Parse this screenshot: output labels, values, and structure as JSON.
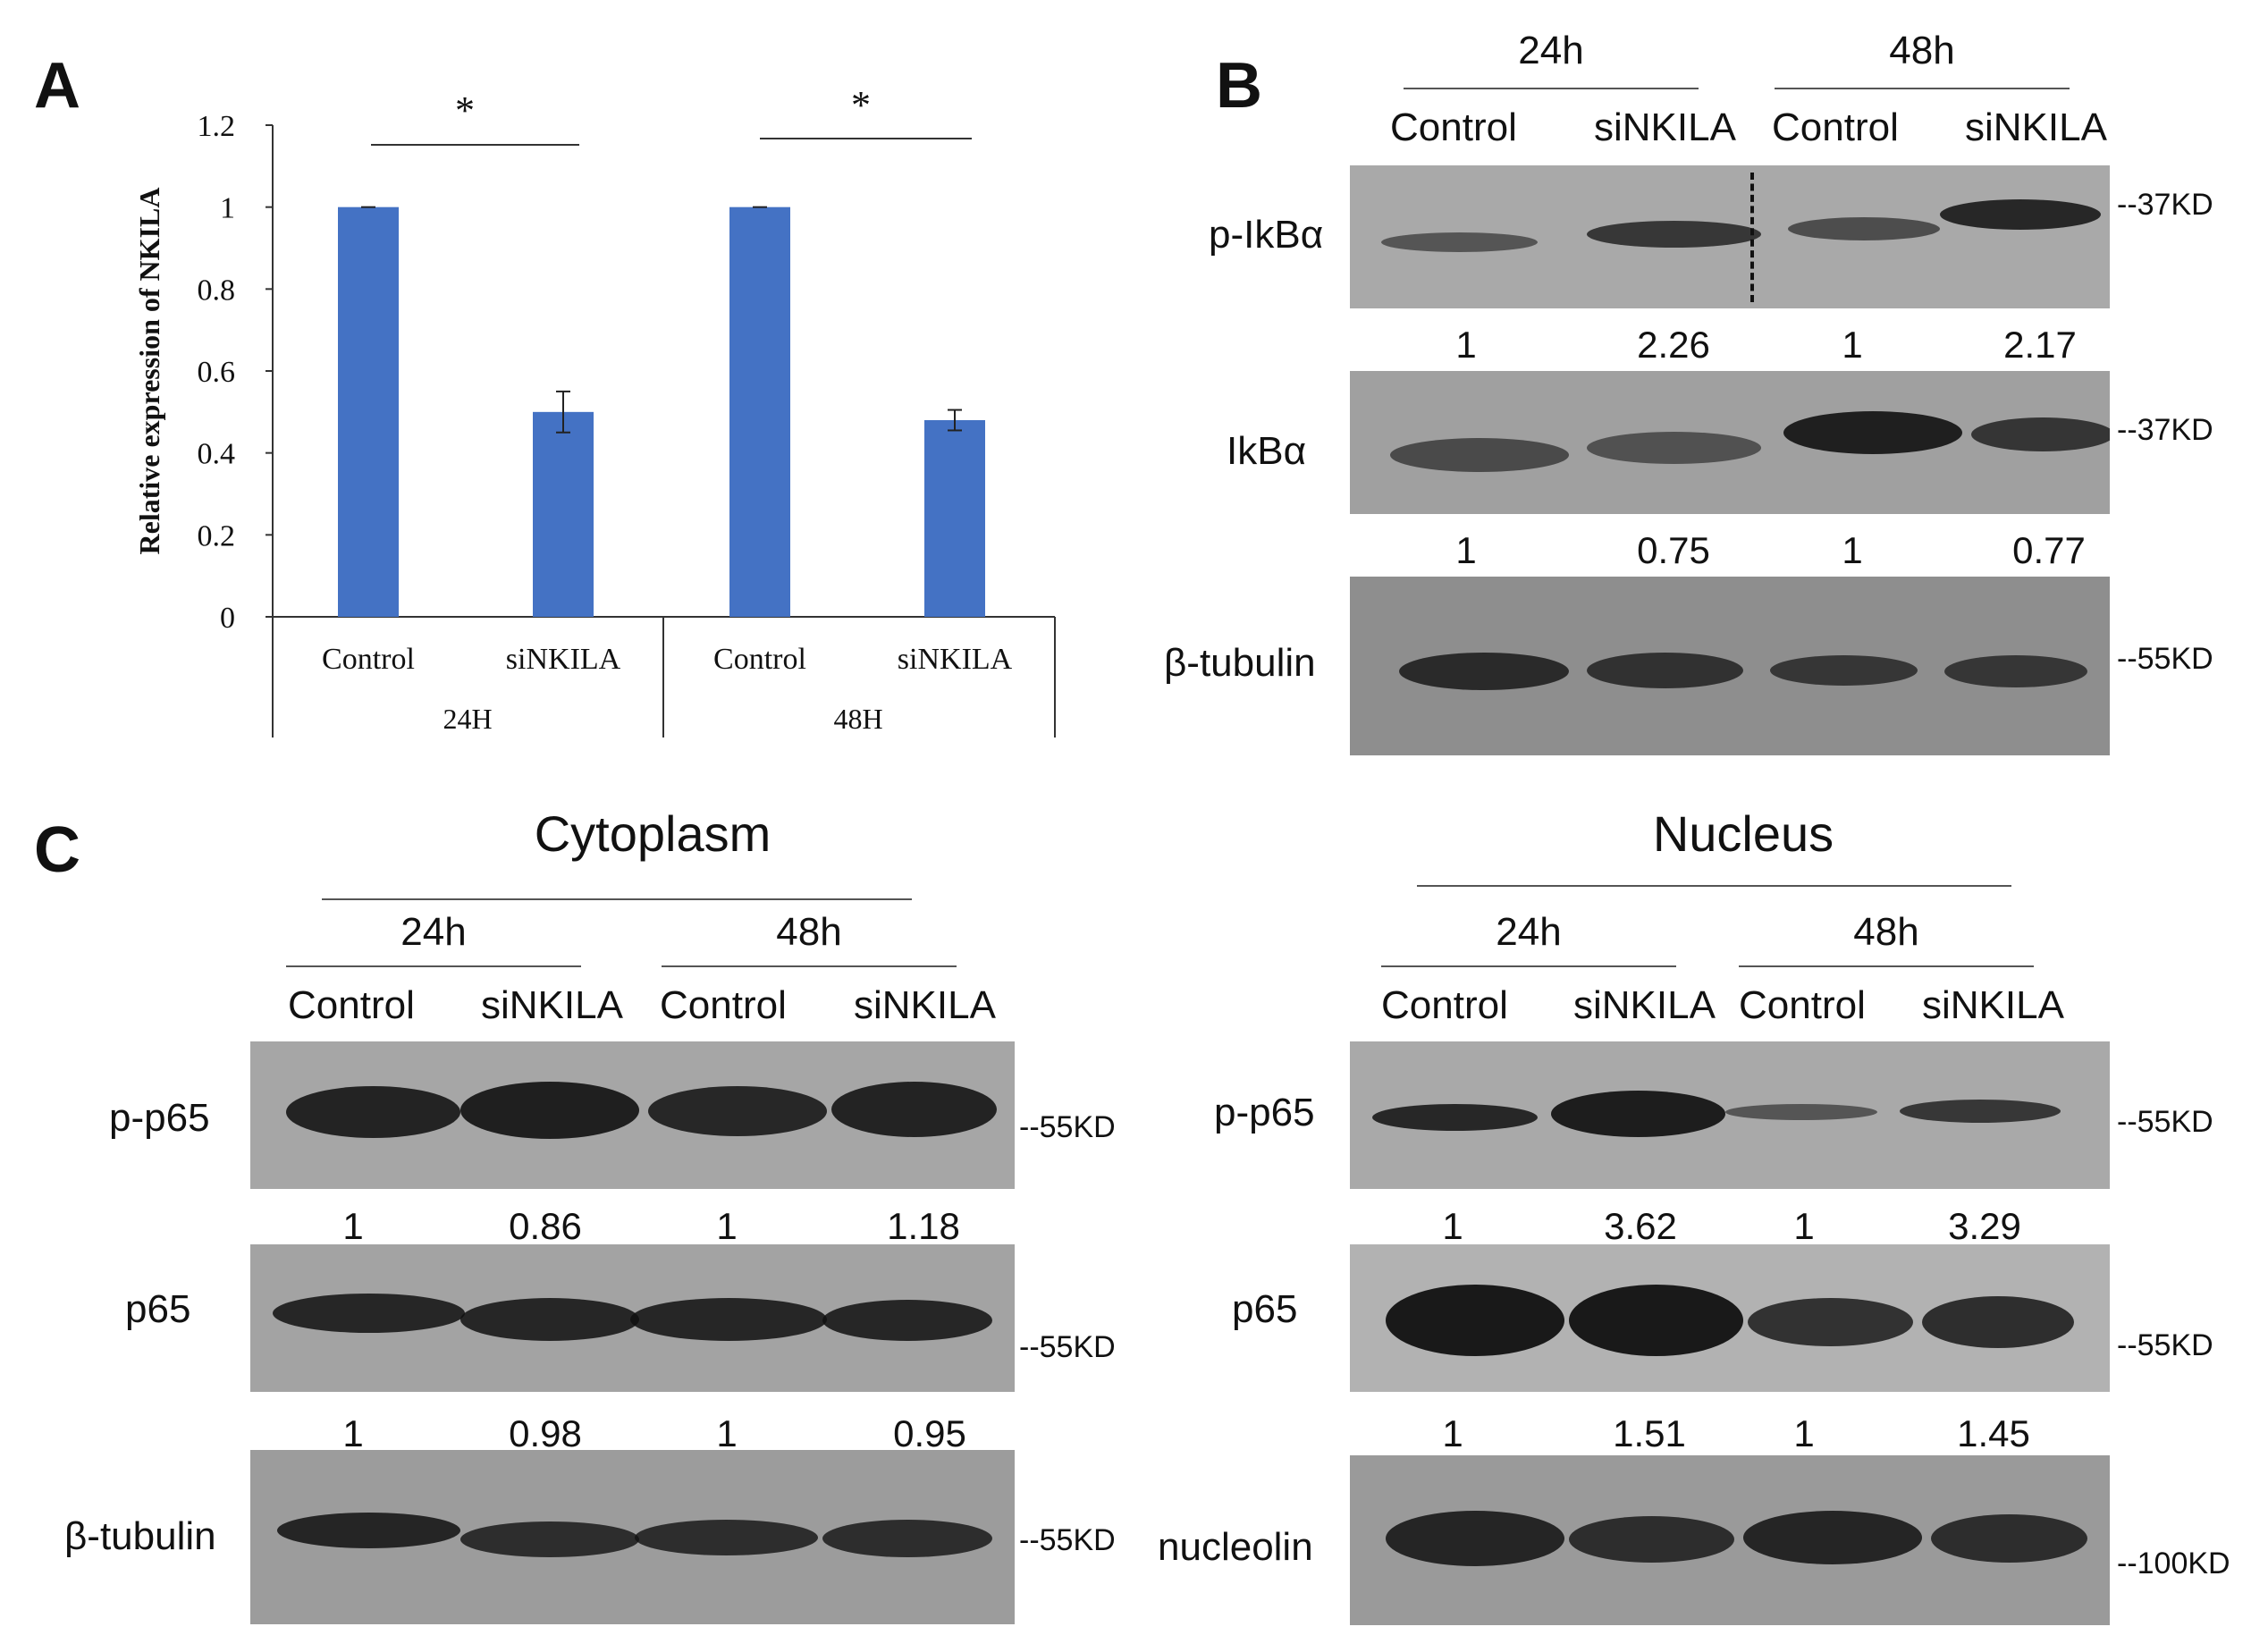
{
  "panelA": {
    "letter": "A",
    "chart_data": {
      "type": "bar",
      "ylabel": "Relative expression of NKILA",
      "ylim": [
        0,
        1.2
      ],
      "yticks": [
        "0",
        "0.2",
        "0.4",
        "0.6",
        "0.8",
        "1",
        "1.2"
      ],
      "groups": [
        "24H",
        "48H"
      ],
      "categories": [
        "Control",
        "siNKILA",
        "Control",
        "siNKILA"
      ],
      "values": [
        1.0,
        0.5,
        1.0,
        0.48
      ],
      "errors": [
        0.0,
        0.05,
        0.0,
        0.025
      ],
      "significance": [
        "*",
        "*"
      ],
      "bar_color": "#4472C4"
    }
  },
  "panelB": {
    "letter": "B",
    "time_headers": [
      "24h",
      "48h"
    ],
    "lane_labels": [
      "Control",
      "siNKILA",
      "Control",
      "siNKILA"
    ],
    "blots": [
      {
        "name": "p-IkBα",
        "marker": "--37KD"
      },
      {
        "name": "IkBα",
        "marker": "--37KD"
      },
      {
        "name": "β-tubulin",
        "marker": "--55KD"
      }
    ],
    "ratios": [
      [
        "1",
        "2.26",
        "1",
        "2.17"
      ],
      [
        "1",
        "0.75",
        "1",
        "0.77"
      ]
    ]
  },
  "panelC": {
    "letter": "C",
    "cytoplasm": {
      "title": "Cytoplasm",
      "time_headers": [
        "24h",
        "48h"
      ],
      "lane_labels": [
        "Control",
        "siNKILA",
        "Control",
        "siNKILA"
      ],
      "blots": [
        {
          "name": "p-p65",
          "marker": "--55KD"
        },
        {
          "name": "p65",
          "marker": "--55KD"
        },
        {
          "name": "β-tubulin",
          "marker": "--55KD"
        }
      ],
      "ratios": [
        [
          "1",
          "0.86",
          "1",
          "1.18"
        ],
        [
          "1",
          "0.98",
          "1",
          "0.95"
        ]
      ]
    },
    "nucleus": {
      "title": "Nucleus",
      "time_headers": [
        "24h",
        "48h"
      ],
      "lane_labels": [
        "Control",
        "siNKILA",
        "Control",
        "siNKILA"
      ],
      "blots": [
        {
          "name": "p-p65",
          "marker": "--55KD"
        },
        {
          "name": "p65",
          "marker": "--55KD"
        },
        {
          "name": "nucleolin",
          "marker": "--100KD"
        }
      ],
      "ratios": [
        [
          "1",
          "3.62",
          "1",
          "3.29"
        ],
        [
          "1",
          "1.51",
          "1",
          "1.45"
        ]
      ]
    }
  }
}
